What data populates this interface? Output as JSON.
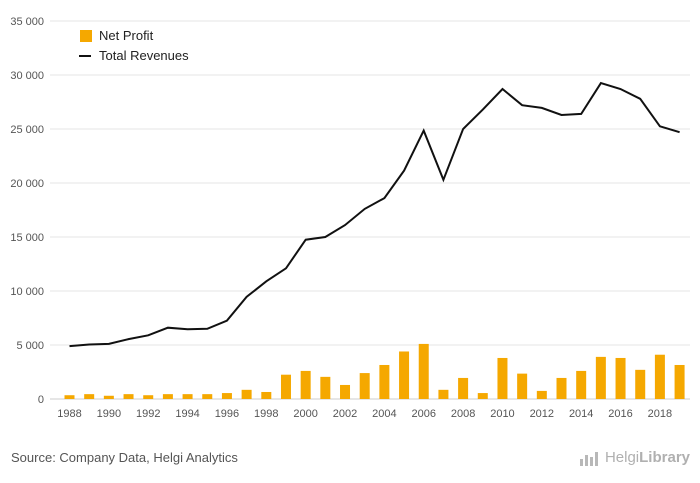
{
  "chart_data": {
    "type": "bar+line",
    "x": [
      1988,
      1989,
      1990,
      1991,
      1992,
      1993,
      1994,
      1995,
      1996,
      1997,
      1998,
      1999,
      2000,
      2001,
      2002,
      2003,
      2004,
      2005,
      2006,
      2007,
      2008,
      2009,
      2010,
      2011,
      2012,
      2013,
      2014,
      2015,
      2016,
      2017,
      2018,
      2019
    ],
    "x_tick_labels": [
      "1988",
      "1990",
      "1992",
      "1994",
      "1996",
      "1998",
      "2000",
      "2002",
      "2004",
      "2006",
      "2008",
      "2010",
      "2012",
      "2014",
      "2016",
      "2018"
    ],
    "y_tick_labels": [
      "0",
      "5 000",
      "10 000",
      "15 000",
      "20 000",
      "25 000",
      "30 000",
      "35 000"
    ],
    "ylim": [
      0,
      35000
    ],
    "grid": true,
    "legend_position": "top-left",
    "series": [
      {
        "name": "Net Profit",
        "kind": "bar",
        "color": "#F5A800",
        "values": [
          350,
          450,
          300,
          450,
          350,
          450,
          450,
          450,
          550,
          850,
          650,
          2250,
          2600,
          2050,
          1300,
          2400,
          3150,
          4400,
          5100,
          850,
          1950,
          550,
          3800,
          2350,
          750,
          1950,
          2600,
          3900,
          3800,
          2700,
          4100,
          3150
        ]
      },
      {
        "name": "Total Revenues",
        "kind": "line",
        "color": "#111111",
        "values": [
          4900,
          5050,
          5100,
          5550,
          5900,
          6600,
          6450,
          6500,
          7250,
          9450,
          10900,
          12100,
          14750,
          15000,
          16100,
          17600,
          18600,
          21150,
          24850,
          20300,
          25000,
          26800,
          28700,
          27200,
          26950,
          26300,
          26400,
          29250,
          28700,
          27800,
          25250,
          24700
        ]
      }
    ]
  },
  "footer": {
    "source": "Source: Company Data, Helgi Analytics",
    "brand_light": "Helgi",
    "brand_bold": "Library"
  }
}
